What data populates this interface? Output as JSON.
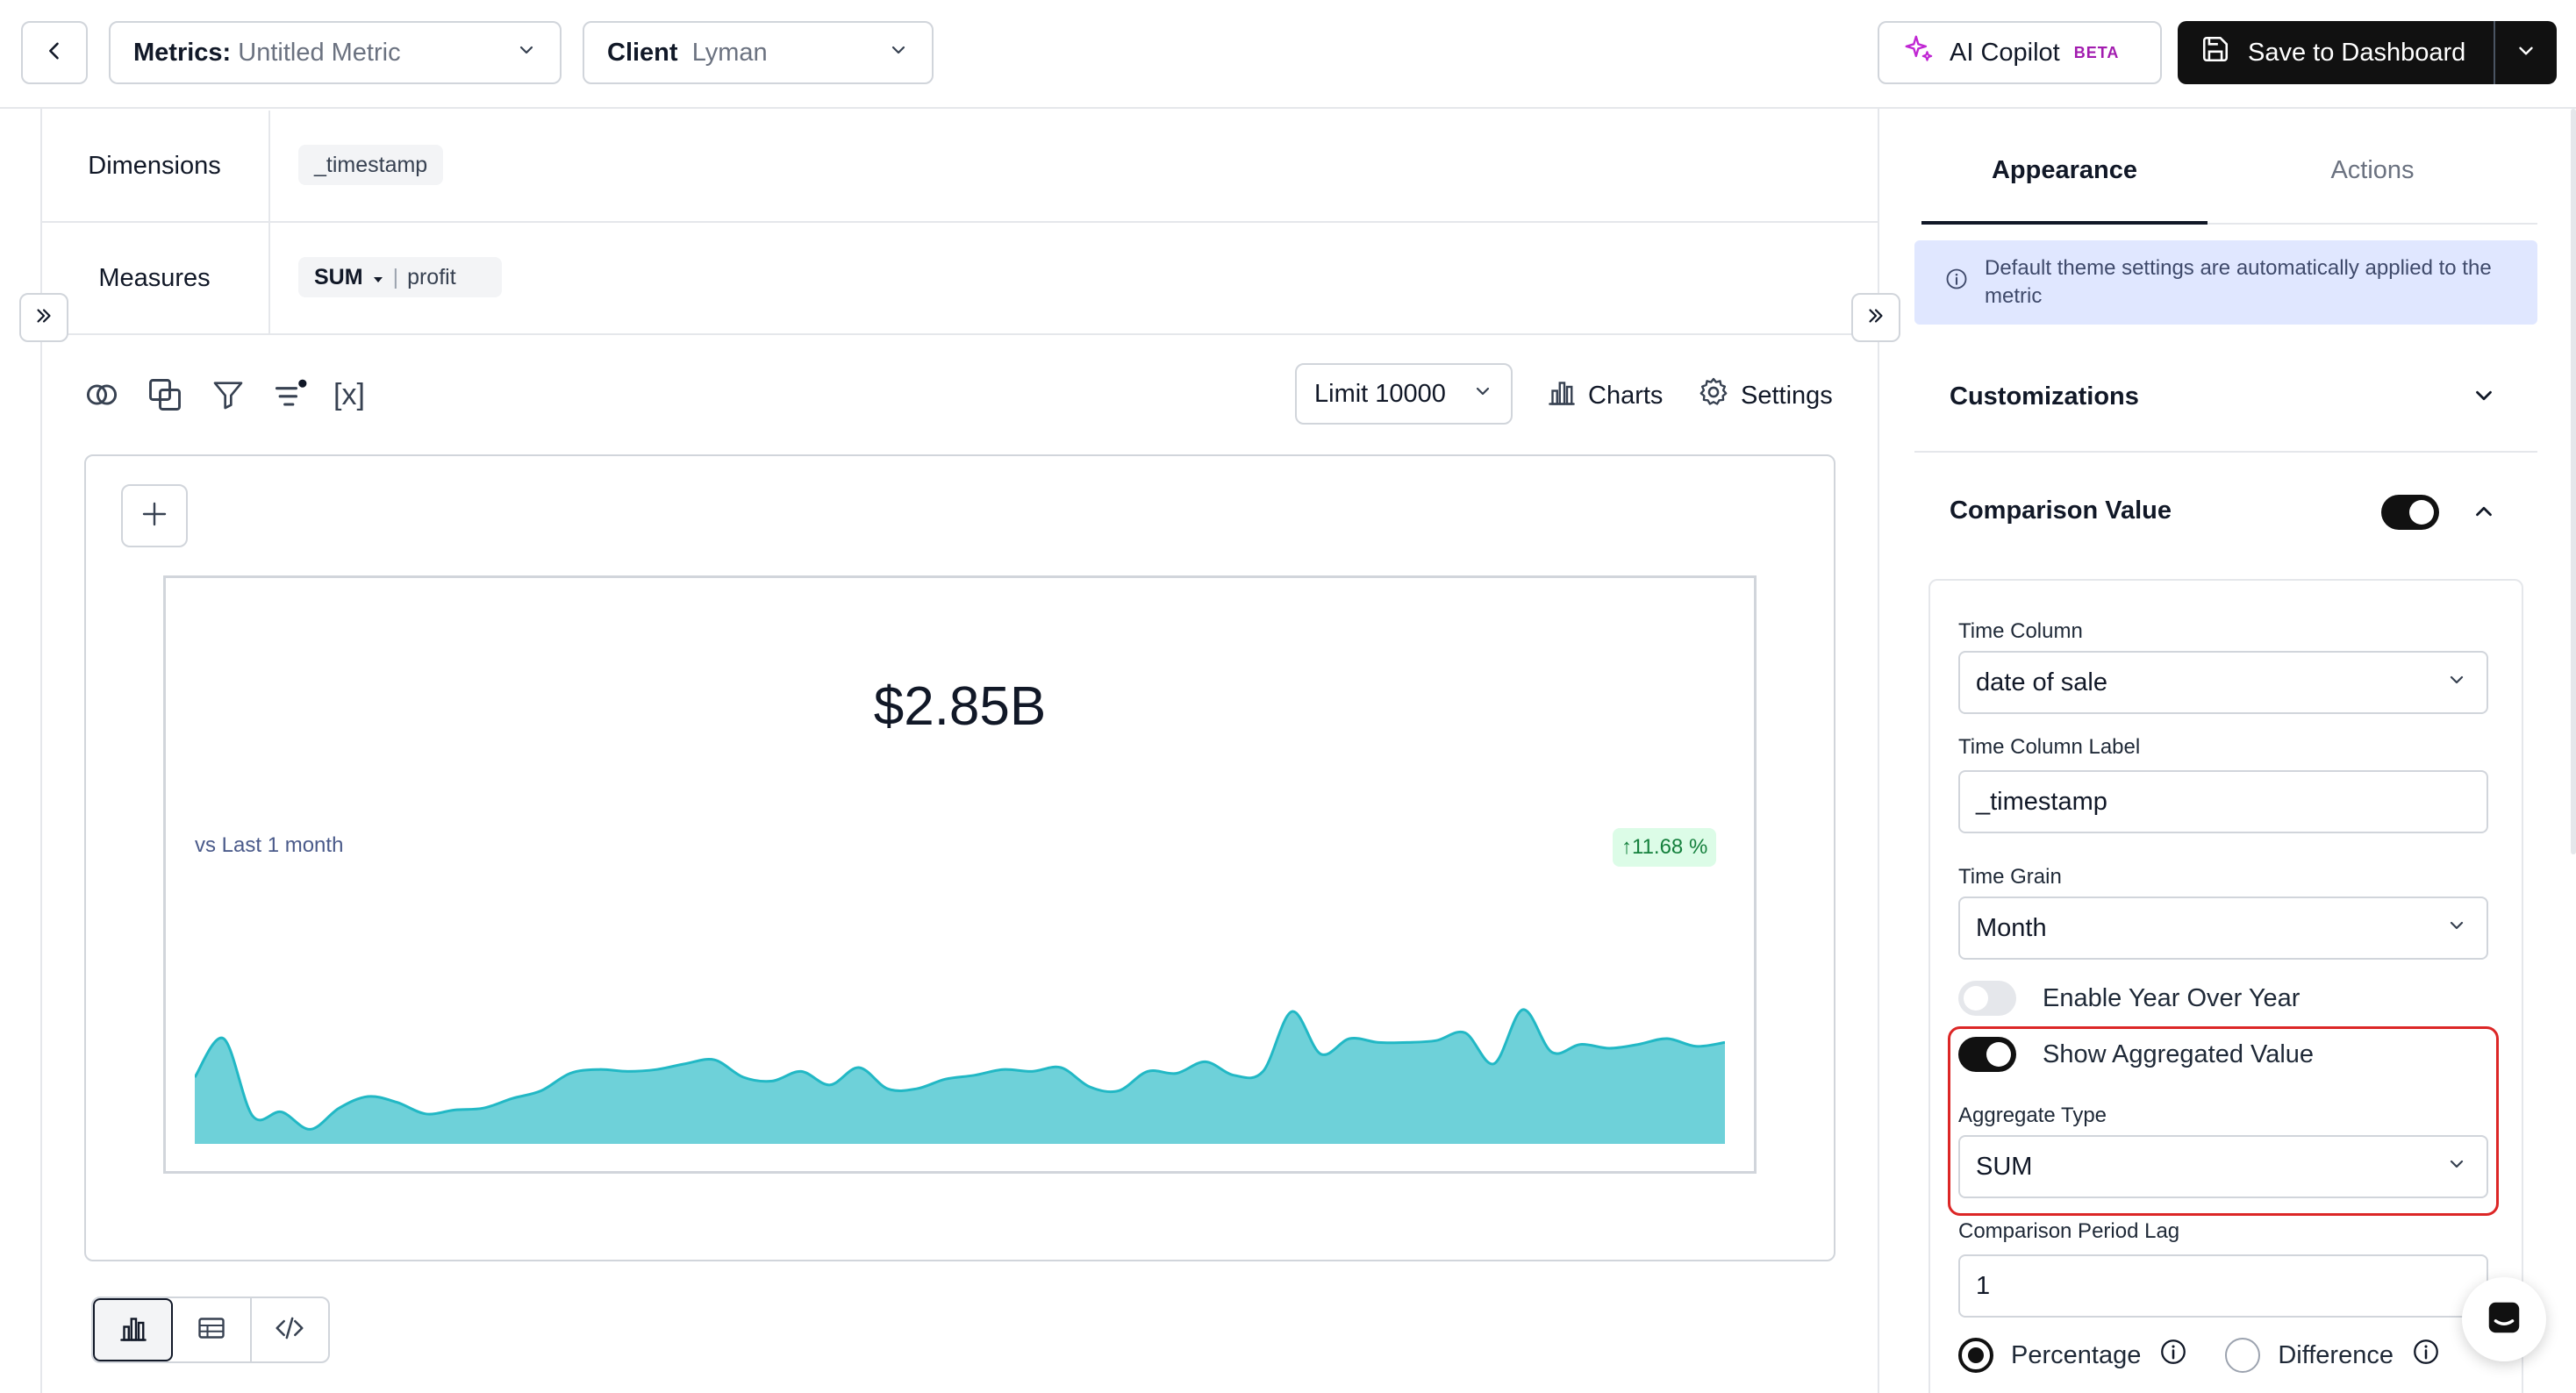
{
  "header": {
    "metrics_label": "Metrics:",
    "metrics_value": "Untitled Metric",
    "client_label": "Client",
    "client_value": "Lyman",
    "copilot_label": "AI Copilot",
    "copilot_badge": "BETA",
    "save_label": "Save to Dashboard"
  },
  "query": {
    "dimensions_label": "Dimensions",
    "dimension_chip": "_timestamp",
    "measures_label": "Measures",
    "measure_agg": "SUM",
    "measure_field": "profit"
  },
  "toolbar": {
    "variables_label": "[x]",
    "limit_label": "Limit 10000",
    "charts_label": "Charts",
    "settings_label": "Settings"
  },
  "metric_card": {
    "value": "$2.85B",
    "comparison_label": "vs Last 1 month",
    "change_label": "↑11.68 %",
    "accent_color": "#6ed1d9",
    "line_color": "#22b8c5"
  },
  "chart_data": {
    "type": "area",
    "series": [
      {
        "values": [
          30,
          50,
          10,
          12,
          3,
          14,
          20,
          17,
          11,
          13,
          14,
          19,
          23,
          32,
          34,
          33,
          34,
          37,
          39,
          30,
          28,
          33,
          26,
          35,
          24,
          24,
          29,
          31,
          34,
          33,
          35,
          25,
          23,
          33,
          32,
          38,
          31,
          33,
          64,
          42,
          50,
          48,
          48,
          49,
          53,
          37,
          65,
          43,
          47,
          45,
          47,
          50,
          46,
          48
        ]
      }
    ]
  },
  "panel": {
    "tab_appearance": "Appearance",
    "tab_actions": "Actions",
    "info_text": "Default theme settings are automatically applied to the metric",
    "customizations_label": "Customizations",
    "comparison_label": "Comparison Value",
    "comparison_enabled": true,
    "time_column_label": "Time Column",
    "time_column_value": "date of sale",
    "time_column_label_label": "Time Column Label",
    "time_column_label_value": "_timestamp",
    "time_grain_label": "Time Grain",
    "time_grain_value": "Month",
    "yoy_label": "Enable Year Over Year",
    "yoy_enabled": false,
    "show_agg_label": "Show Aggregated Value",
    "show_agg_enabled": true,
    "agg_type_label": "Aggregate Type",
    "agg_type_value": "SUM",
    "lag_label": "Comparison Period Lag",
    "lag_value": "1",
    "percentage_label": "Percentage",
    "difference_label": "Difference",
    "selected_mode": "Percentage"
  }
}
